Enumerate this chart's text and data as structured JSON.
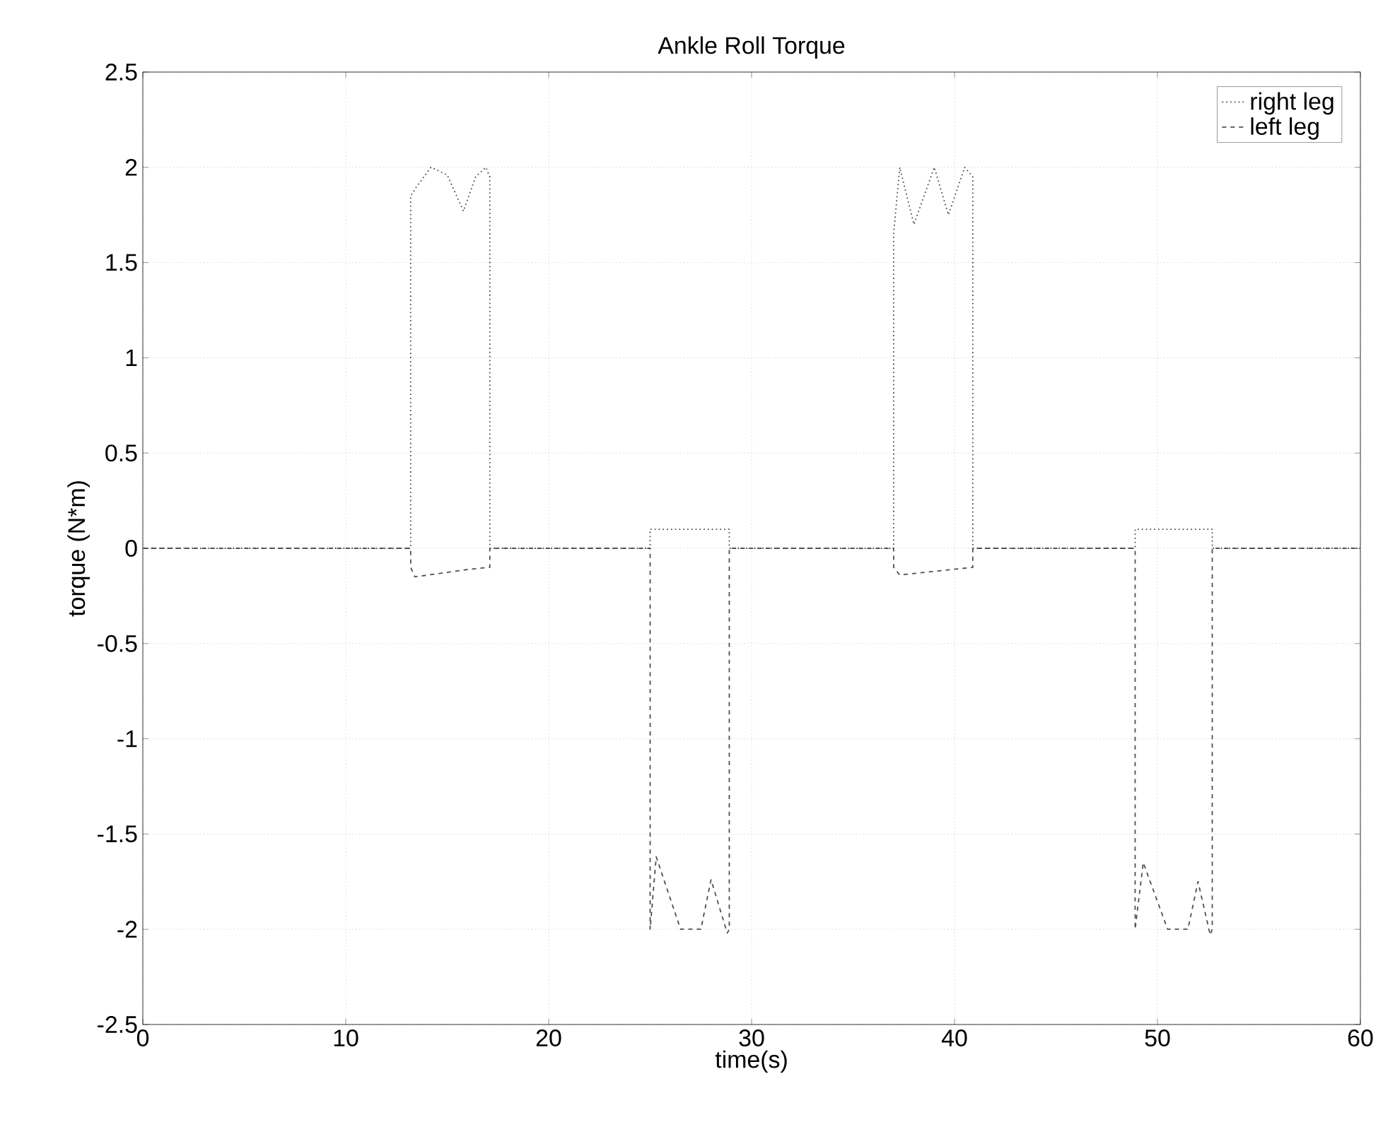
{
  "chart_data": {
    "type": "line",
    "title": "Ankle Roll Torque",
    "xlabel": "time(s)",
    "ylabel": "torque (N*m)",
    "xlim": [
      0,
      60
    ],
    "ylim": [
      -2.5,
      2.5
    ],
    "xticks": [
      0,
      10,
      20,
      30,
      40,
      50,
      60
    ],
    "yticks": [
      -2.5,
      -2,
      -1.5,
      -1,
      -0.5,
      0,
      0.5,
      1,
      1.5,
      2,
      2.5
    ],
    "grid": true,
    "legend": "top right",
    "series": [
      {
        "name": "right leg",
        "color": "#505050",
        "line_style": "dotted",
        "x": [
          0,
          13.2,
          13.2,
          13.5,
          14.2,
          15,
          15.8,
          16.4,
          16.9,
          17.1,
          17.1,
          25,
          25,
          28.9,
          28.9,
          37,
          37,
          37.3,
          38,
          39,
          39.7,
          40.5,
          40.9,
          40.9,
          48.9,
          48.9,
          52.7,
          52.7,
          60
        ],
        "values": [
          0,
          0,
          1.85,
          1.9,
          2.0,
          1.96,
          1.77,
          1.95,
          2.0,
          1.95,
          0,
          0,
          0.1,
          0.1,
          0,
          0,
          1.65,
          2.0,
          1.7,
          2.0,
          1.75,
          2.0,
          1.95,
          0,
          0,
          0.1,
          0.1,
          0,
          0
        ]
      },
      {
        "name": "left leg",
        "color": "#505050",
        "line_style": "dashed",
        "x": [
          0,
          13.2,
          13.2,
          13.4,
          16.1,
          17.1,
          17.1,
          25,
          25,
          25.3,
          26.5,
          27.5,
          28,
          28.8,
          28.9,
          28.9,
          37,
          37,
          37.3,
          40.9,
          40.9,
          48.9,
          48.9,
          49.3,
          50.5,
          51.5,
          52,
          52.6,
          52.7,
          52.7,
          60
        ],
        "values": [
          0,
          0,
          -0.1,
          -0.15,
          -0.11,
          -0.1,
          0,
          0,
          -2,
          -1.62,
          -2,
          -2,
          -1.74,
          -2.02,
          -2,
          0,
          0,
          -0.1,
          -0.14,
          -0.1,
          0,
          0,
          -2,
          -1.65,
          -2,
          -2,
          -1.75,
          -2.03,
          -2,
          0,
          0
        ]
      }
    ]
  }
}
